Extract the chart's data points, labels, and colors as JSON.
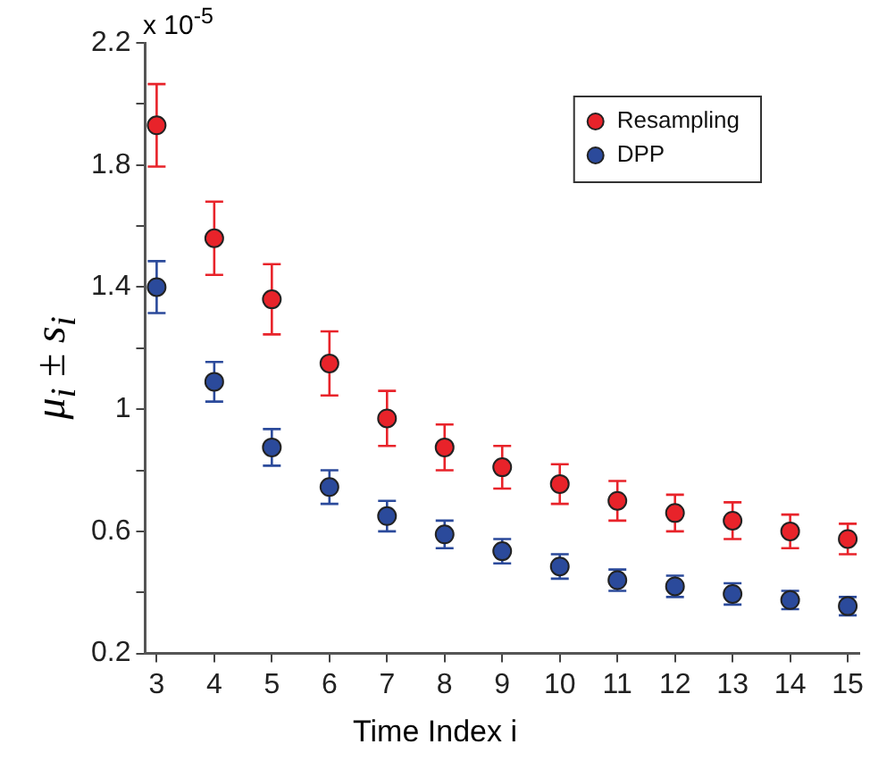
{
  "chart_data": {
    "type": "scatter",
    "xlabel": "Time Index i",
    "ylabel": "μ$_{i}$ ± s$_{i}$",
    "annotations": [
      "x 10$^{-5}$"
    ],
    "x": [
      3,
      4,
      5,
      6,
      7,
      8,
      9,
      10,
      11,
      12,
      13,
      14,
      15
    ],
    "series": [
      {
        "name": "Resampling",
        "color": "#e8232a",
        "values": [
          1.93,
          1.56,
          1.36,
          1.15,
          0.97,
          0.875,
          0.81,
          0.755,
          0.7,
          0.66,
          0.635,
          0.6,
          0.575
        ],
        "errors": [
          0.135,
          0.12,
          0.115,
          0.105,
          0.09,
          0.075,
          0.07,
          0.065,
          0.065,
          0.06,
          0.06,
          0.055,
          0.05
        ]
      },
      {
        "name": "DPP",
        "color": "#2b4a9b",
        "values": [
          1.4,
          1.09,
          0.875,
          0.745,
          0.65,
          0.59,
          0.535,
          0.485,
          0.44,
          0.42,
          0.395,
          0.375,
          0.355
        ],
        "errors": [
          0.085,
          0.065,
          0.06,
          0.055,
          0.05,
          0.045,
          0.04,
          0.04,
          0.035,
          0.035,
          0.035,
          0.03,
          0.03
        ]
      }
    ],
    "xlim": [
      2.8,
      15.2
    ],
    "xticks": [
      3,
      4,
      5,
      6,
      7,
      8,
      9,
      10,
      11,
      12,
      13,
      14,
      15
    ],
    "ylim": [
      0.2,
      2.2
    ],
    "yticks": [
      0.2,
      {
        "value": 0.4,
        "label": null
      },
      0.6,
      {
        "value": 0.8,
        "label": null
      },
      1,
      {
        "value": 1.2,
        "label": null
      },
      1.4,
      {
        "value": 1.6,
        "label": null
      },
      1.8,
      {
        "value": 2,
        "label": null
      },
      2.2
    ],
    "grid": false,
    "legend": "top right",
    "marker": "circle"
  }
}
